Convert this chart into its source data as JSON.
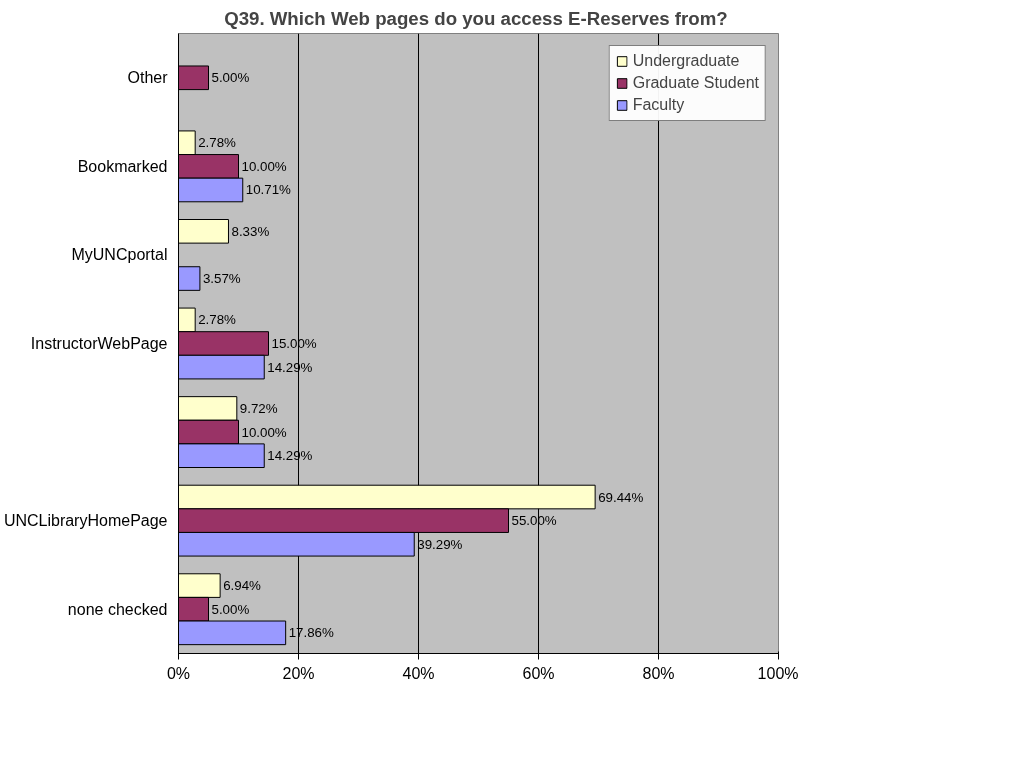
{
  "chart_data": {
    "type": "bar",
    "orientation": "horizontal",
    "title": "Q39.  Which Web pages do you access E-Reserves from?",
    "categories": [
      "Other",
      "Bookmarked",
      "MyUNCportal",
      "InstructorWebPage",
      null,
      "UNCLibraryHomePage",
      "none checked"
    ],
    "series": [
      {
        "name": "Undergraduate",
        "color": "#ffffcc",
        "values": [
          null,
          2.78,
          8.33,
          2.78,
          9.72,
          69.44,
          6.94
        ],
        "value_labels": [
          null,
          "2.78%",
          "8.33%",
          "2.78%",
          "9.72%",
          "69.44%",
          "6.94%"
        ]
      },
      {
        "name": "Graduate Student",
        "color": "#993366",
        "values": [
          5.0,
          10.0,
          null,
          15.0,
          10.0,
          55.0,
          5.0
        ],
        "value_labels": [
          "5.00%",
          "10.00%",
          null,
          "15.00%",
          "10.00%",
          "55.00%",
          "5.00%"
        ]
      },
      {
        "name": "Faculty",
        "color": "#9999ff",
        "values": [
          null,
          10.71,
          3.57,
          14.29,
          14.29,
          39.29,
          17.86
        ],
        "value_labels": [
          null,
          "10.71%",
          "3.57%",
          "14.29%",
          "14.29%",
          "39.29%",
          "17.86%"
        ]
      }
    ],
    "xlim": [
      0,
      100
    ],
    "xticks": [
      {
        "value": 0,
        "label": "0%"
      },
      {
        "value": 20,
        "label": "20%"
      },
      {
        "value": 40,
        "label": "40%"
      },
      {
        "value": 60,
        "label": "60%"
      },
      {
        "value": 80,
        "label": "80%"
      },
      {
        "value": 100,
        "label": "100%"
      }
    ],
    "grid": "x",
    "legend": "top right"
  }
}
